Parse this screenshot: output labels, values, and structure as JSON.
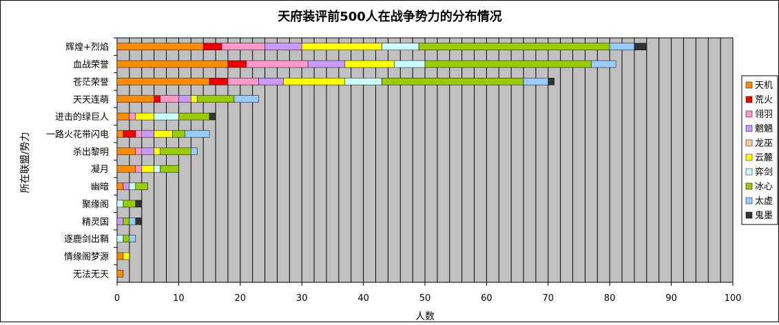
{
  "chart_data": {
    "type": "bar",
    "orientation": "horizontal",
    "stacked": true,
    "title": "天府装评前500人在战争势力的分布情况",
    "xlabel": "人数",
    "ylabel": "所在联盟/势力",
    "xlim": [
      0,
      100
    ],
    "xticks": [
      0,
      10,
      20,
      30,
      40,
      50,
      60,
      70,
      80,
      90,
      100
    ],
    "grid": true,
    "legend_position": "right",
    "categories": [
      "辉煌+烈焰",
      "血战荣誉",
      "苍茫荣誉",
      "天天连萌",
      "进击的绿巨人",
      "一路火花带闪电",
      "杀出黎明",
      "凝月",
      "幽暗",
      "聚缘阁",
      "精灵国",
      "逐鹿剑出鞘",
      "情缘阁梦源",
      "无法无天"
    ],
    "series": [
      {
        "name": "天机",
        "color": "#ff8c00",
        "values": [
          14,
          18,
          15,
          6,
          2,
          1,
          3,
          3,
          1,
          0,
          0,
          0,
          1,
          1
        ]
      },
      {
        "name": "荒火",
        "color": "#ee0000",
        "values": [
          3,
          3,
          3,
          1,
          0,
          2,
          0,
          0,
          0,
          0,
          0,
          0,
          0,
          0
        ]
      },
      {
        "name": "翎羽",
        "color": "#ff99cc",
        "values": [
          7,
          10,
          5,
          3,
          1,
          1,
          1,
          1,
          0,
          0,
          0,
          0,
          0,
          0
        ]
      },
      {
        "name": "魍魉",
        "color": "#cc99ff",
        "values": [
          6,
          6,
          4,
          2,
          0,
          2,
          2,
          0,
          1,
          0,
          1,
          0,
          0,
          0
        ]
      },
      {
        "name": "龙巫",
        "color": "#ffcc99",
        "values": [
          0,
          0,
          0,
          0,
          0,
          0,
          0,
          0,
          0,
          0,
          0,
          0,
          0,
          0
        ]
      },
      {
        "name": "云麓",
        "color": "#ffff00",
        "values": [
          13,
          8,
          10,
          1,
          3,
          3,
          1,
          2,
          0,
          0,
          0,
          0,
          1,
          0
        ]
      },
      {
        "name": "弈剑",
        "color": "#ccffff",
        "values": [
          6,
          5,
          6,
          0,
          4,
          0,
          0,
          1,
          1,
          1,
          0,
          1,
          0,
          0
        ]
      },
      {
        "name": "冰心",
        "color": "#99cc00",
        "values": [
          31,
          27,
          23,
          6,
          5,
          2,
          5,
          3,
          2,
          2,
          1,
          1,
          0,
          0
        ]
      },
      {
        "name": "太虚",
        "color": "#99ccff",
        "values": [
          4,
          4,
          4,
          4,
          0,
          4,
          1,
          0,
          0,
          0,
          1,
          1,
          0,
          0
        ]
      },
      {
        "name": "鬼墨",
        "color": "#333333",
        "values": [
          2,
          0,
          1,
          0,
          1,
          0,
          0,
          0,
          0,
          1,
          1,
          0,
          0,
          0
        ]
      }
    ]
  }
}
